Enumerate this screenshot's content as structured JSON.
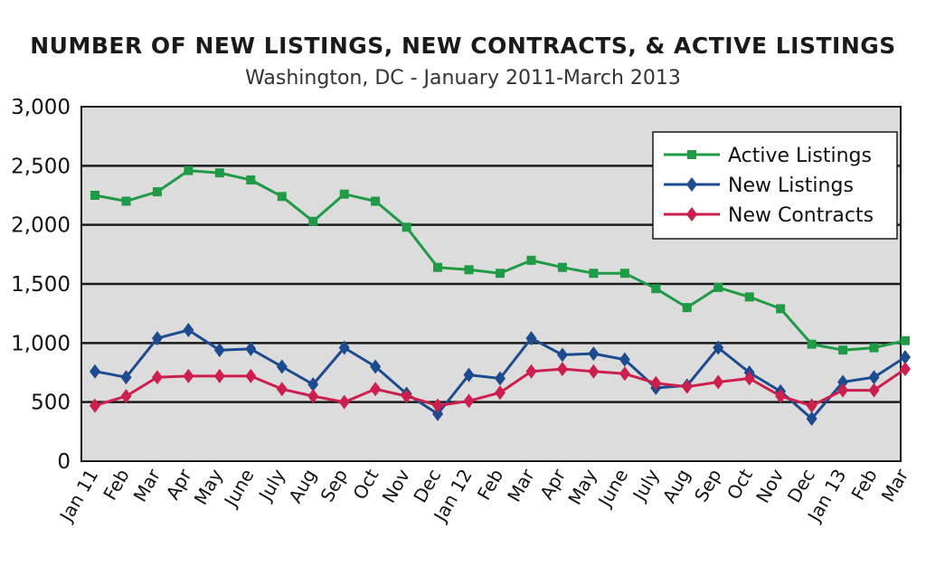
{
  "chart_data": {
    "type": "line",
    "title": "NUMBER OF NEW LISTINGS, NEW CONTRACTS, & ACTIVE LISTINGS",
    "subtitle": "Washington, DC - January 2011-March 2013",
    "xlabel": "",
    "ylabel": "",
    "ylim": [
      0,
      3000
    ],
    "yticks": [
      0,
      500,
      1000,
      1500,
      2000,
      2500,
      3000
    ],
    "ytick_labels": [
      "0",
      "500",
      "1,000",
      "1,500",
      "2,000",
      "2,500",
      "3,000"
    ],
    "grid": true,
    "legend_position": "top-right",
    "categories": [
      "Jan 11",
      "Feb",
      "Mar",
      "Apr",
      "May",
      "June",
      "July",
      "Aug",
      "Sep",
      "Oct",
      "Nov",
      "Dec",
      "Jan 12",
      "Feb",
      "Mar",
      "Apr",
      "May",
      "June",
      "July",
      "Aug",
      "Sep",
      "Oct",
      "Nov",
      "Dec",
      "Jan 13",
      "Feb",
      "Mar"
    ],
    "series": [
      {
        "name": "Active Listings",
        "color": "#1f9a45",
        "marker": "square",
        "values": [
          2250,
          2200,
          2280,
          2460,
          2440,
          2380,
          2240,
          2030,
          2260,
          2200,
          1980,
          1640,
          1620,
          1590,
          1700,
          1640,
          1590,
          1590,
          1460,
          1300,
          1470,
          1390,
          1290,
          990,
          940,
          960,
          1020
        ]
      },
      {
        "name": "New Listings",
        "color": "#1d4b8f",
        "marker": "diamond",
        "values": [
          760,
          710,
          1040,
          1110,
          940,
          950,
          800,
          650,
          960,
          800,
          570,
          400,
          730,
          700,
          1040,
          900,
          910,
          860,
          620,
          640,
          960,
          750,
          590,
          360,
          670,
          710,
          880
        ]
      },
      {
        "name": "New Contracts",
        "color": "#cc1f4e",
        "marker": "diamond",
        "values": [
          470,
          550,
          710,
          720,
          720,
          720,
          610,
          550,
          500,
          610,
          550,
          470,
          510,
          580,
          760,
          780,
          760,
          740,
          660,
          630,
          670,
          700,
          550,
          470,
          600,
          600,
          780
        ]
      }
    ]
  }
}
